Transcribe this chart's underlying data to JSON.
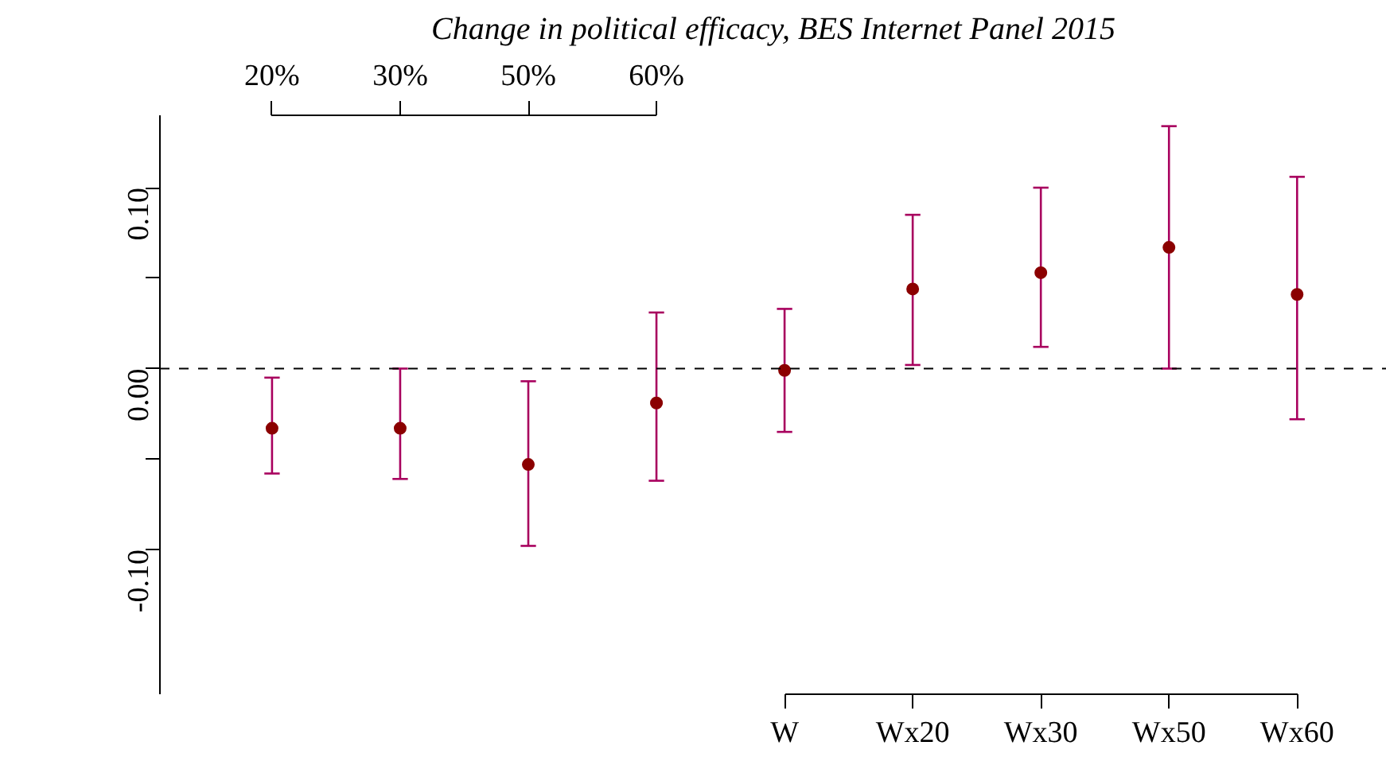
{
  "chart_data": {
    "type": "scatter",
    "title": "Change in political efficacy, BES Internet Panel 2015",
    "categories": [
      null,
      null,
      null,
      null,
      "W",
      "Wx20",
      "Wx30",
      "Wx50",
      "Wx60"
    ],
    "annotations": [
      "20%",
      "30%",
      "50%",
      "60%"
    ],
    "values": [
      -0.033,
      -0.033,
      -0.053,
      -0.019,
      -0.001,
      0.044,
      0.053,
      0.067,
      0.041
    ],
    "errors": [
      [
        -0.058,
        -0.005
      ],
      [
        -0.061,
        0.0
      ],
      [
        -0.098,
        -0.007
      ],
      [
        -0.062,
        0.031
      ],
      [
        -0.035,
        0.033
      ],
      [
        0.002,
        0.085
      ],
      [
        0.012,
        0.1
      ],
      [
        0.0,
        0.134
      ],
      [
        -0.028,
        0.106
      ]
    ],
    "color": "#8b0000",
    "marker": "circle",
    "ylim": [
      -0.18,
      0.14
    ],
    "yticks": [
      {
        "value": -0.1,
        "label": "-0.10"
      },
      {
        "value": -0.05,
        "label": null
      },
      {
        "value": 0.0,
        "label": "0.00"
      },
      {
        "value": 0.05,
        "label": null
      },
      {
        "value": 0.1,
        "label": "0.10"
      }
    ],
    "ref_lines": [
      {
        "axis": "y",
        "value": 0,
        "color": "#000000",
        "line_style": "dashed"
      }
    ],
    "grid": false
  }
}
